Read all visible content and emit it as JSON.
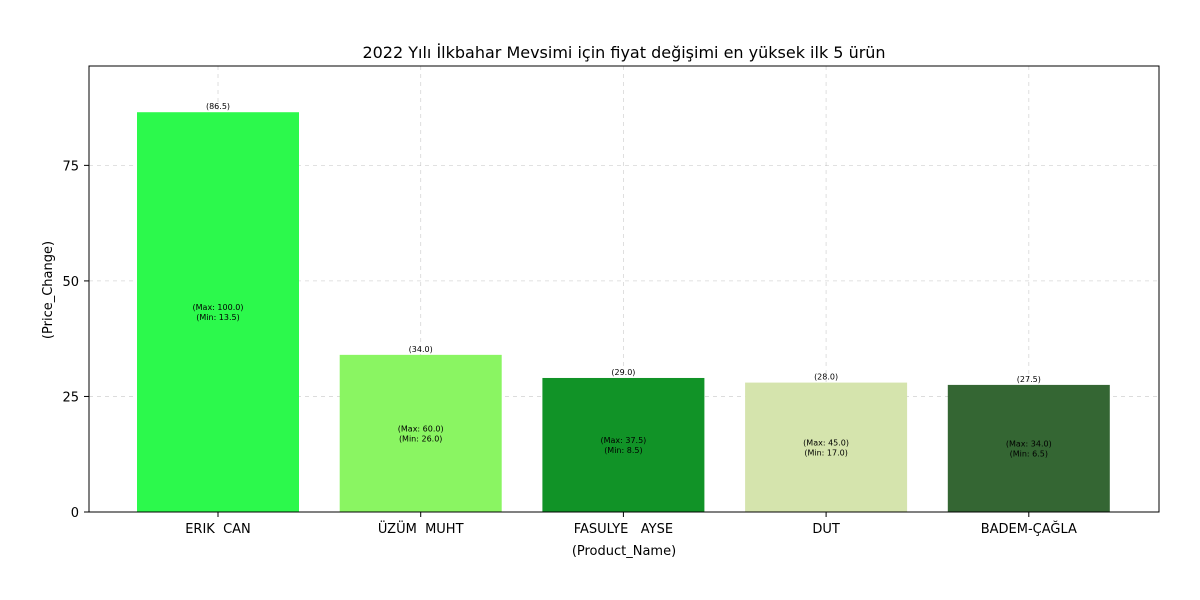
{
  "chart_data": {
    "type": "bar",
    "title": "2022 Yılı İlkbahar Mevsimi için fiyat değişimi en yüksek ilk 5 ürün",
    "xlabel": "(Product_Name)",
    "ylabel": "(Price_Change)",
    "categories": [
      "ERIK  CAN",
      "ÜZÜM  MUHT",
      "FASULYE   AYSE",
      "DUT",
      "BADEM-ÇAĞLA"
    ],
    "values": [
      86.5,
      34.0,
      29.0,
      28.0,
      27.5
    ],
    "top_labels": [
      "(86.5)",
      "(34.0)",
      "(29.0)",
      "(28.0)",
      "(27.5)"
    ],
    "max_labels": [
      "(Max: 100.0)",
      "(Max: 60.0)",
      "(Max: 37.5)",
      "(Max: 45.0)",
      "(Max: 34.0)"
    ],
    "min_labels": [
      "(Min: 13.5)",
      "(Min: 26.0)",
      "(Min: 8.5)",
      "(Min: 17.0)",
      "(Min: 6.5)"
    ],
    "colors": [
      "#2cf94c",
      "#8af562",
      "#119327",
      "#d5e4ad",
      "#346633"
    ],
    "yticks": [
      0,
      25,
      50,
      75
    ],
    "ylim": [
      0,
      96.5
    ],
    "grid": true
  }
}
